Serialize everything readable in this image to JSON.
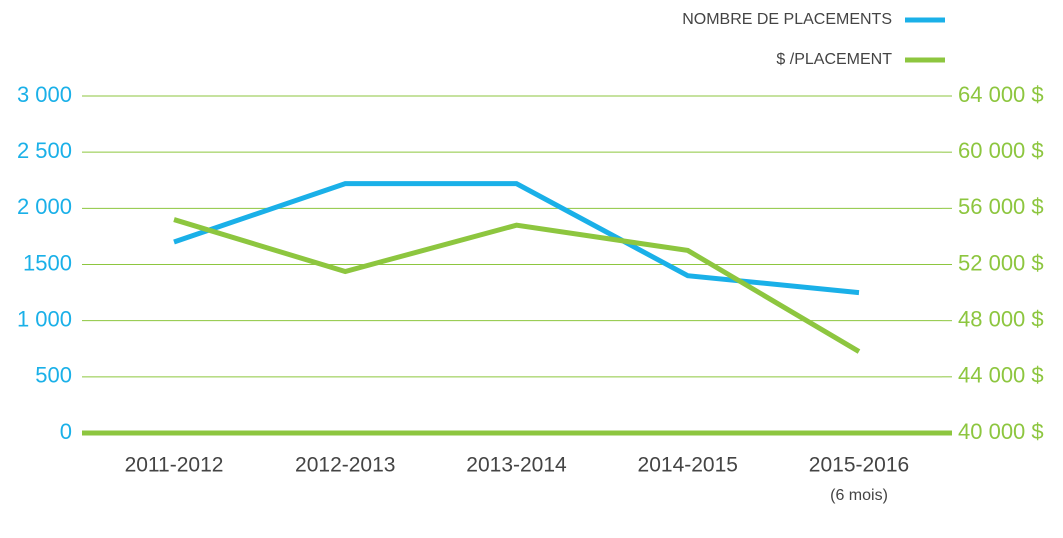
{
  "chart_data": {
    "type": "line",
    "categories": [
      "2011-2012",
      "2012-2013",
      "2013-2014",
      "2014-2015",
      "2015-2016"
    ],
    "category_note": "(6 mois)",
    "series": [
      {
        "name": "NOMBRE DE PLACEMENTS",
        "color": "#1ab0e8",
        "axis": "y",
        "values": [
          1700,
          2220,
          2220,
          1400,
          1250
        ]
      },
      {
        "name": "$ /PLACEMENT",
        "color": "#8dc63f",
        "axis": "y2",
        "values": [
          55200,
          51500,
          54800,
          53000,
          45800
        ]
      }
    ],
    "ylim": [
      0,
      3000
    ],
    "yticks": [
      0,
      500,
      {
        "value": 1000,
        "label": "1 000"
      },
      1500,
      {
        "value": 2000,
        "label": "2 000"
      },
      {
        "value": 2500,
        "label": "2 500"
      },
      {
        "value": 3000,
        "label": "3 000"
      }
    ],
    "y2lim": [
      40000,
      64000
    ],
    "y2ticks": [
      {
        "value": 40000,
        "label": "40 000 $"
      },
      {
        "value": 44000,
        "label": "44 000 $"
      },
      {
        "value": 48000,
        "label": "48 000 $"
      },
      {
        "value": 52000,
        "label": "52 000 $"
      },
      {
        "value": 56000,
        "label": "56 000 $"
      },
      {
        "value": 60000,
        "label": "60 000 $"
      },
      {
        "value": 64000,
        "label": "64 000 $"
      }
    ],
    "grid": true,
    "grid_color": "#8dc63f",
    "ytick_color": "#1ab0e8",
    "y2tick_color": "#8dc63f",
    "legend": "top-right"
  }
}
